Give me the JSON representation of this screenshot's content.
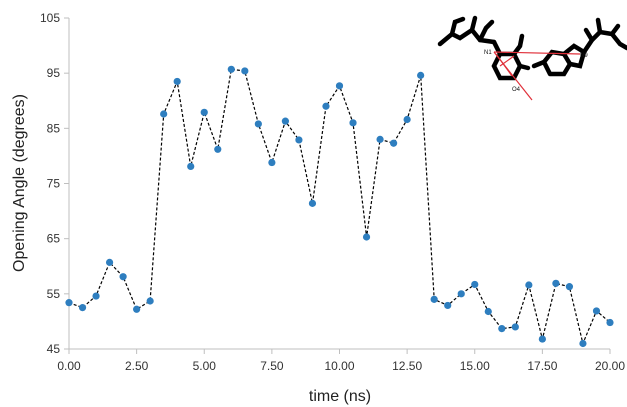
{
  "chart_data": {
    "type": "line",
    "title": "",
    "xlabel": "time (ns)",
    "ylabel": "Opening Angle (degrees)",
    "xlim": [
      0,
      20
    ],
    "ylim": [
      45,
      105
    ],
    "x_ticks": [
      "0.00",
      "2.50",
      "5.00",
      "7.50",
      "10.00",
      "12.50",
      "15.00",
      "17.50",
      "20.00"
    ],
    "y_ticks": [
      "45",
      "55",
      "65",
      "75",
      "85",
      "95",
      "105"
    ],
    "grid": false,
    "legend": "none",
    "series": [
      {
        "color": "#2e7ebf",
        "line_style": "dashed-black",
        "x": [
          0,
          0.5,
          1,
          1.5,
          2,
          2.5,
          3,
          3.5,
          4,
          4.5,
          5,
          5.5,
          6,
          6.5,
          7,
          7.5,
          8,
          8.5,
          9,
          9.5,
          10,
          10.5,
          11,
          11.5,
          12,
          12.5,
          13,
          13.5,
          14,
          14.5,
          15,
          15.5,
          16,
          16.5,
          17,
          17.5,
          18,
          18.5,
          19,
          19.5,
          20
        ],
        "y": [
          53.4,
          52.5,
          54.6,
          60.7,
          58.1,
          52.2,
          53.7,
          87.6,
          93.5,
          78.1,
          87.9,
          81.2,
          95.7,
          95.4,
          85.8,
          78.8,
          86.3,
          82.9,
          71.4,
          89.0,
          92.7,
          86.0,
          65.3,
          83.0,
          82.3,
          86.6,
          94.6,
          54.0,
          52.9,
          55.0,
          56.7,
          51.8,
          48.7,
          49.0,
          56.6,
          46.8,
          56.9,
          56.3,
          46.0,
          51.9,
          49.8
        ]
      }
    ],
    "inset": {
      "atom_labels": [
        "N1",
        "N9",
        "O4"
      ]
    }
  }
}
